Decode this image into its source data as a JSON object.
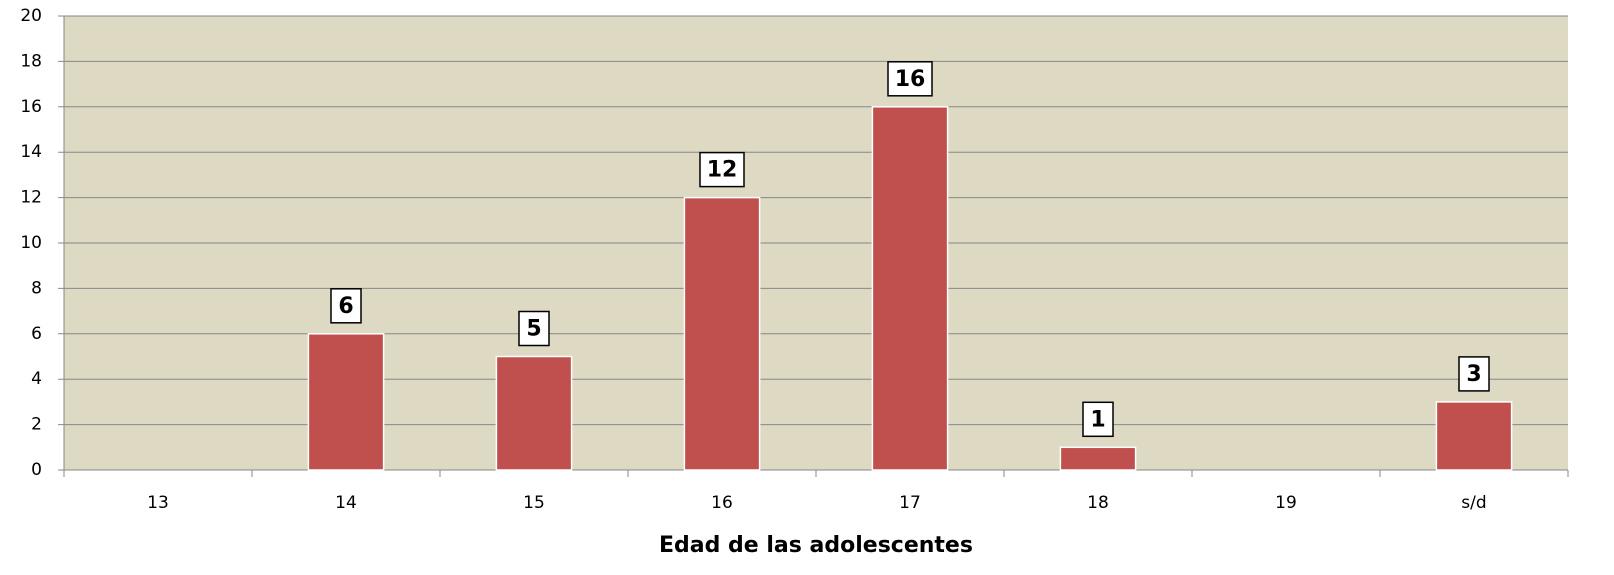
{
  "chart_data": {
    "type": "bar",
    "x_label": "Edad de las adolescentes",
    "categories": [
      "13",
      "14",
      "15",
      "16",
      "17",
      "18",
      "19",
      "s/d"
    ],
    "values": [
      null,
      6,
      5,
      12,
      16,
      1,
      null,
      3
    ],
    "color": "#c0504d",
    "ylim": [
      0,
      20
    ],
    "yticks": [
      0,
      2,
      4,
      6,
      8,
      10,
      12,
      14,
      16,
      18,
      20
    ],
    "grid": true
  }
}
